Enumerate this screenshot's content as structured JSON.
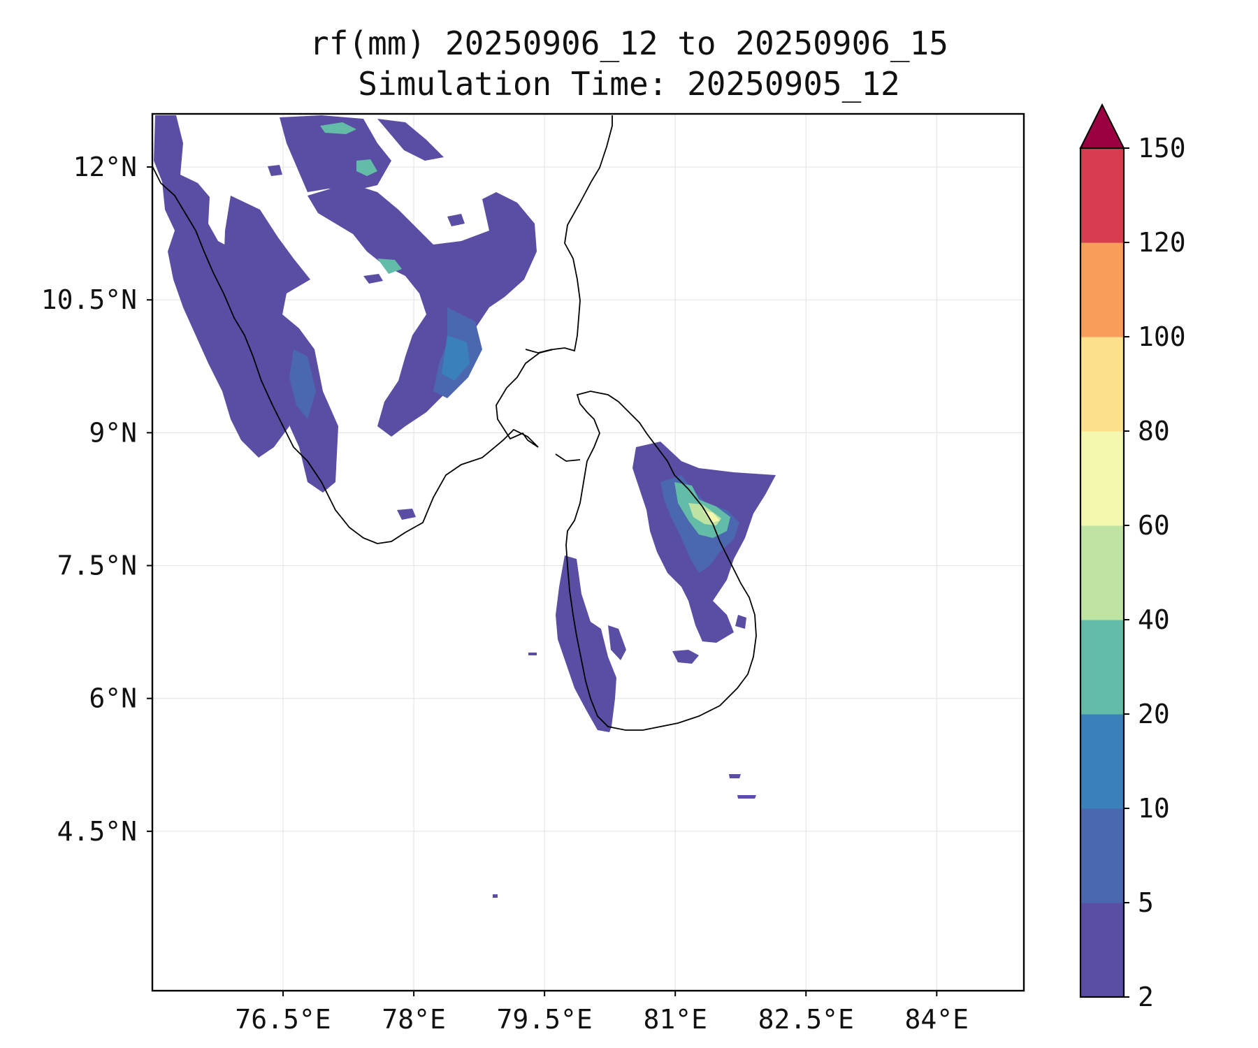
{
  "title": {
    "line1": "rf(mm) 20250906_12 to 20250906_15",
    "line2": "Simulation Time: 20250905_12"
  },
  "map": {
    "lon_range": [
      75.0,
      85.0
    ],
    "lat_range": [
      2.7,
      12.6
    ],
    "x_ticks": [
      {
        "value": 76.5,
        "label": "76.5°E"
      },
      {
        "value": 78.0,
        "label": "78°E"
      },
      {
        "value": 79.5,
        "label": "79.5°E"
      },
      {
        "value": 81.0,
        "label": "81°E"
      },
      {
        "value": 82.5,
        "label": "82.5°E"
      },
      {
        "value": 84.0,
        "label": "84°E"
      }
    ],
    "y_ticks": [
      {
        "value": 12.0,
        "label": "12°N"
      },
      {
        "value": 10.5,
        "label": "10.5°N"
      },
      {
        "value": 9.0,
        "label": "9°N"
      },
      {
        "value": 7.5,
        "label": "7.5°N"
      },
      {
        "value": 6.0,
        "label": "6°N"
      },
      {
        "value": 4.5,
        "label": "4.5°N"
      }
    ],
    "gridlines": true,
    "coastline_color": "#000000"
  },
  "colorbar": {
    "levels": [
      "2",
      "5",
      "10",
      "20",
      "40",
      "60",
      "80",
      "100",
      "120",
      "150"
    ],
    "colors": [
      "#5a4ea4",
      "#4a67b0",
      "#3a80ba",
      "#62bca8",
      "#bfe3a2",
      "#f3f8ae",
      "#fde08b",
      "#f99d5a",
      "#d63e50"
    ],
    "extend_color": "#9b0041",
    "extend": "max"
  }
}
